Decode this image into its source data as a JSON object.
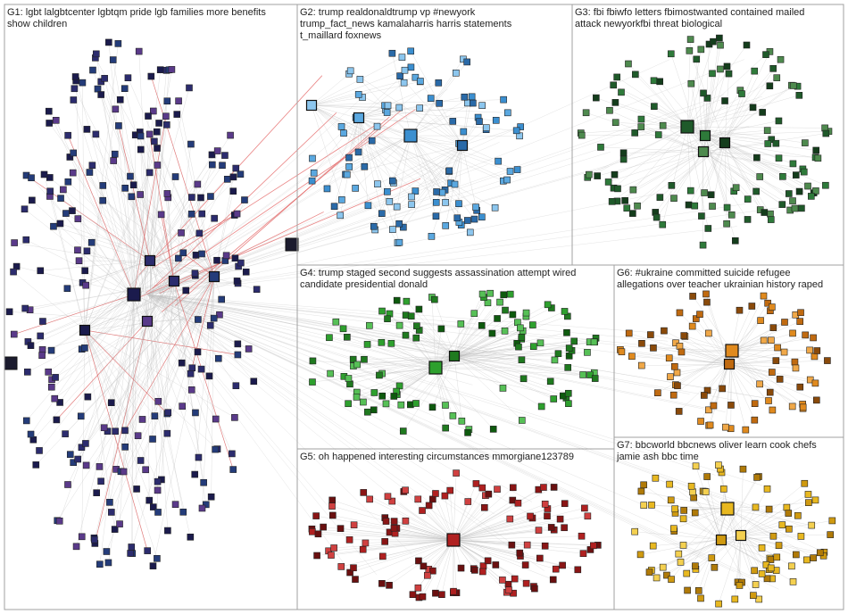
{
  "groups": [
    {
      "label_lines": [
        "G1: lgbt lalgbtcenter lgbtqm pride lgb families more benefits",
        "show children"
      ]
    },
    {
      "label_lines": [
        "G2: trump realdonaldtrump vp #newyork",
        "trump_fact_news kamalaharris harris statements",
        "t_maillard foxnews"
      ]
    },
    {
      "label_lines": [
        "G3: fbi fbiwfo letters fbimostwanted contained mailed",
        "attack newyorkfbi threat biological"
      ]
    },
    {
      "label_lines": [
        "G4: trump staged second suggests assassination attempt wired",
        "candidate presidential donald"
      ]
    },
    {
      "label_lines": [
        "G5: oh happened interesting circumstances mmorgiane123789"
      ]
    },
    {
      "label_lines": [
        "G6: #ukraine committed suicide refugee",
        "allegations over teacher ukrainian history raped"
      ]
    },
    {
      "label_lines": [
        "G7: bbcworld bbcnews oliver learn cook chefs",
        "jamie ash bbc time"
      ]
    }
  ]
}
